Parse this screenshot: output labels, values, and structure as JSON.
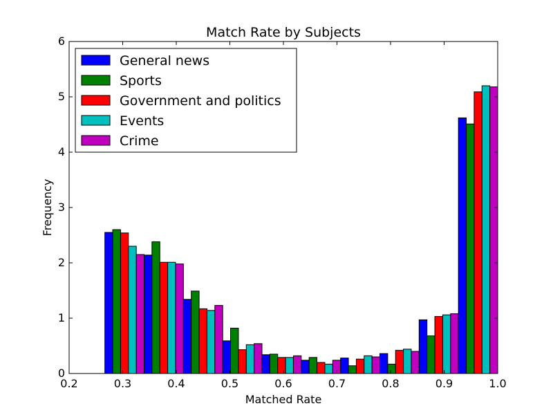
{
  "chart_data": {
    "type": "bar",
    "title": "Match Rate by Subjects",
    "xlabel": "Matched Rate",
    "ylabel": "Frequency",
    "xlim": [
      0.2,
      1.0
    ],
    "ylim": [
      0,
      6
    ],
    "x_ticks": [
      "0.2",
      "0.3",
      "0.4",
      "0.5",
      "0.6",
      "0.7",
      "0.8",
      "0.9",
      "1.0"
    ],
    "y_ticks": [
      "0",
      "1",
      "2",
      "3",
      "4",
      "5",
      "6"
    ],
    "legend_position": "top-left",
    "bin_edges": [
      0.2667,
      0.34,
      0.4133,
      0.4867,
      0.56,
      0.6333,
      0.7067,
      0.78,
      0.8533,
      0.9267,
      1.0
    ],
    "series": [
      {
        "name": "General news",
        "color": "#0000ff",
        "values": [
          2.55,
          2.14,
          1.34,
          0.59,
          0.34,
          0.24,
          0.28,
          0.36,
          0.97,
          4.62
        ]
      },
      {
        "name": "Sports",
        "color": "#008000",
        "values": [
          2.6,
          2.38,
          1.49,
          0.82,
          0.35,
          0.29,
          0.14,
          0.17,
          0.68,
          4.51
        ]
      },
      {
        "name": "Government and politics",
        "color": "#ff0000",
        "values": [
          2.54,
          2.01,
          1.17,
          0.43,
          0.29,
          0.2,
          0.26,
          0.42,
          1.03,
          5.09
        ]
      },
      {
        "name": "Events",
        "color": "#00bfbf",
        "values": [
          2.3,
          2.01,
          1.14,
          0.52,
          0.29,
          0.17,
          0.32,
          0.44,
          1.06,
          5.2
        ]
      },
      {
        "name": "Crime",
        "color": "#bf00bf",
        "values": [
          2.15,
          1.98,
          1.23,
          0.54,
          0.32,
          0.24,
          0.3,
          0.4,
          1.08,
          5.18
        ]
      }
    ]
  }
}
